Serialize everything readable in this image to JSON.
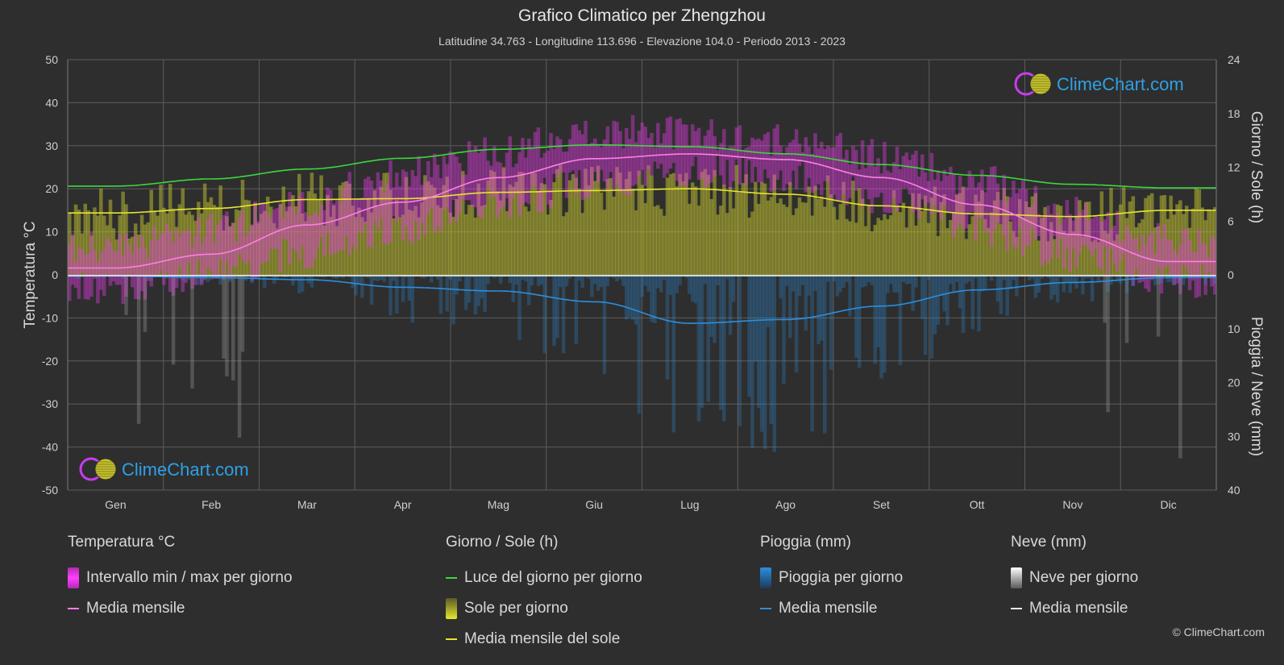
{
  "title": "Grafico Climatico per Zhengzhou",
  "subtitle": "Latitudine 34.763 - Longitudine 113.696 - Elevazione 104.0 - Periodo 2013 - 2023",
  "logo_text": "ClimeChart.com",
  "copyright": "© ClimeChart.com",
  "colors": {
    "background": "#2e2e2e",
    "daylight": "#3ed63e",
    "sunshine_mean": "#e6e62e",
    "sunshine_bar": "#b8b832",
    "temp_range": "#e23ce2",
    "temp_mean": "#ff7ee8",
    "rain": "#2a8fe0",
    "snow": "#e8e8e8"
  },
  "chart_data": {
    "type": "line",
    "months": [
      "Gen",
      "Feb",
      "Mar",
      "Apr",
      "Mag",
      "Giu",
      "Lug",
      "Ago",
      "Set",
      "Ott",
      "Nov",
      "Dic"
    ],
    "left_axis": {
      "label": "Temperatura °C",
      "min": -50,
      "max": 50,
      "ticks": [
        50,
        40,
        30,
        20,
        10,
        0,
        -10,
        -20,
        -30,
        -40,
        -50
      ]
    },
    "right_axis_top": {
      "label": "Giorno / Sole (h)",
      "min": 0,
      "max": 24,
      "ticks": [
        24,
        18,
        12,
        6,
        0
      ]
    },
    "right_axis_bottom": {
      "label": "Pioggia / Neve (mm)",
      "min": 0,
      "max": 40,
      "ticks": [
        0,
        10,
        20,
        30,
        40
      ]
    },
    "series": [
      {
        "name": "Luce del giorno per giorno",
        "unit": "h",
        "values": [
          9.9,
          10.7,
          11.8,
          13.0,
          14.0,
          14.5,
          14.3,
          13.5,
          12.3,
          11.1,
          10.1,
          9.7
        ]
      },
      {
        "name": "Media mensile del sole",
        "unit": "h",
        "values": [
          6.9,
          7.4,
          8.4,
          8.5,
          9.2,
          9.4,
          9.6,
          9.0,
          7.7,
          6.8,
          6.5,
          7.2
        ]
      },
      {
        "name": "Media mensile",
        "group": "Temperatura °C",
        "unit": "°C",
        "values": [
          1.6,
          4.8,
          11.6,
          16.9,
          22.6,
          27.0,
          28.1,
          26.8,
          22.6,
          16.3,
          9.4,
          3.1
        ]
      },
      {
        "name": "Intervallo min / max per giorno",
        "unit": "°C",
        "max_values": [
          6.5,
          10.5,
          17.5,
          23.5,
          28.5,
          33.5,
          33.0,
          31.5,
          27.5,
          22.0,
          14.5,
          8.0
        ],
        "min_values": [
          -3.0,
          0.0,
          5.5,
          11.0,
          16.5,
          21.5,
          24.0,
          23.0,
          18.0,
          11.0,
          4.5,
          -1.5
        ]
      },
      {
        "name": "Media mensile",
        "group": "Pioggia (mm)",
        "unit": "mm",
        "values": [
          0.2,
          0.5,
          0.9,
          2.3,
          3.0,
          5.0,
          9.0,
          8.3,
          5.8,
          2.8,
          1.4,
          0.5
        ]
      },
      {
        "name": "Media mensile",
        "group": "Neve (mm)",
        "unit": "mm",
        "values": [
          0.3,
          0.2,
          0.0,
          0.0,
          0.0,
          0.0,
          0.0,
          0.0,
          0.0,
          0.0,
          0.0,
          0.2
        ]
      }
    ]
  },
  "legend": {
    "temperature": {
      "title": "Temperatura °C",
      "range": "Intervallo min / max per giorno",
      "mean": "Media mensile"
    },
    "sun": {
      "title": "Giorno / Sole (h)",
      "daylight": "Luce del giorno per giorno",
      "sunshine": "Sole per giorno",
      "sun_mean": "Media mensile del sole"
    },
    "rain": {
      "title": "Pioggia (mm)",
      "daily": "Pioggia per giorno",
      "mean": "Media mensile"
    },
    "snow": {
      "title": "Neve (mm)",
      "daily": "Neve per giorno",
      "mean": "Media mensile"
    }
  }
}
